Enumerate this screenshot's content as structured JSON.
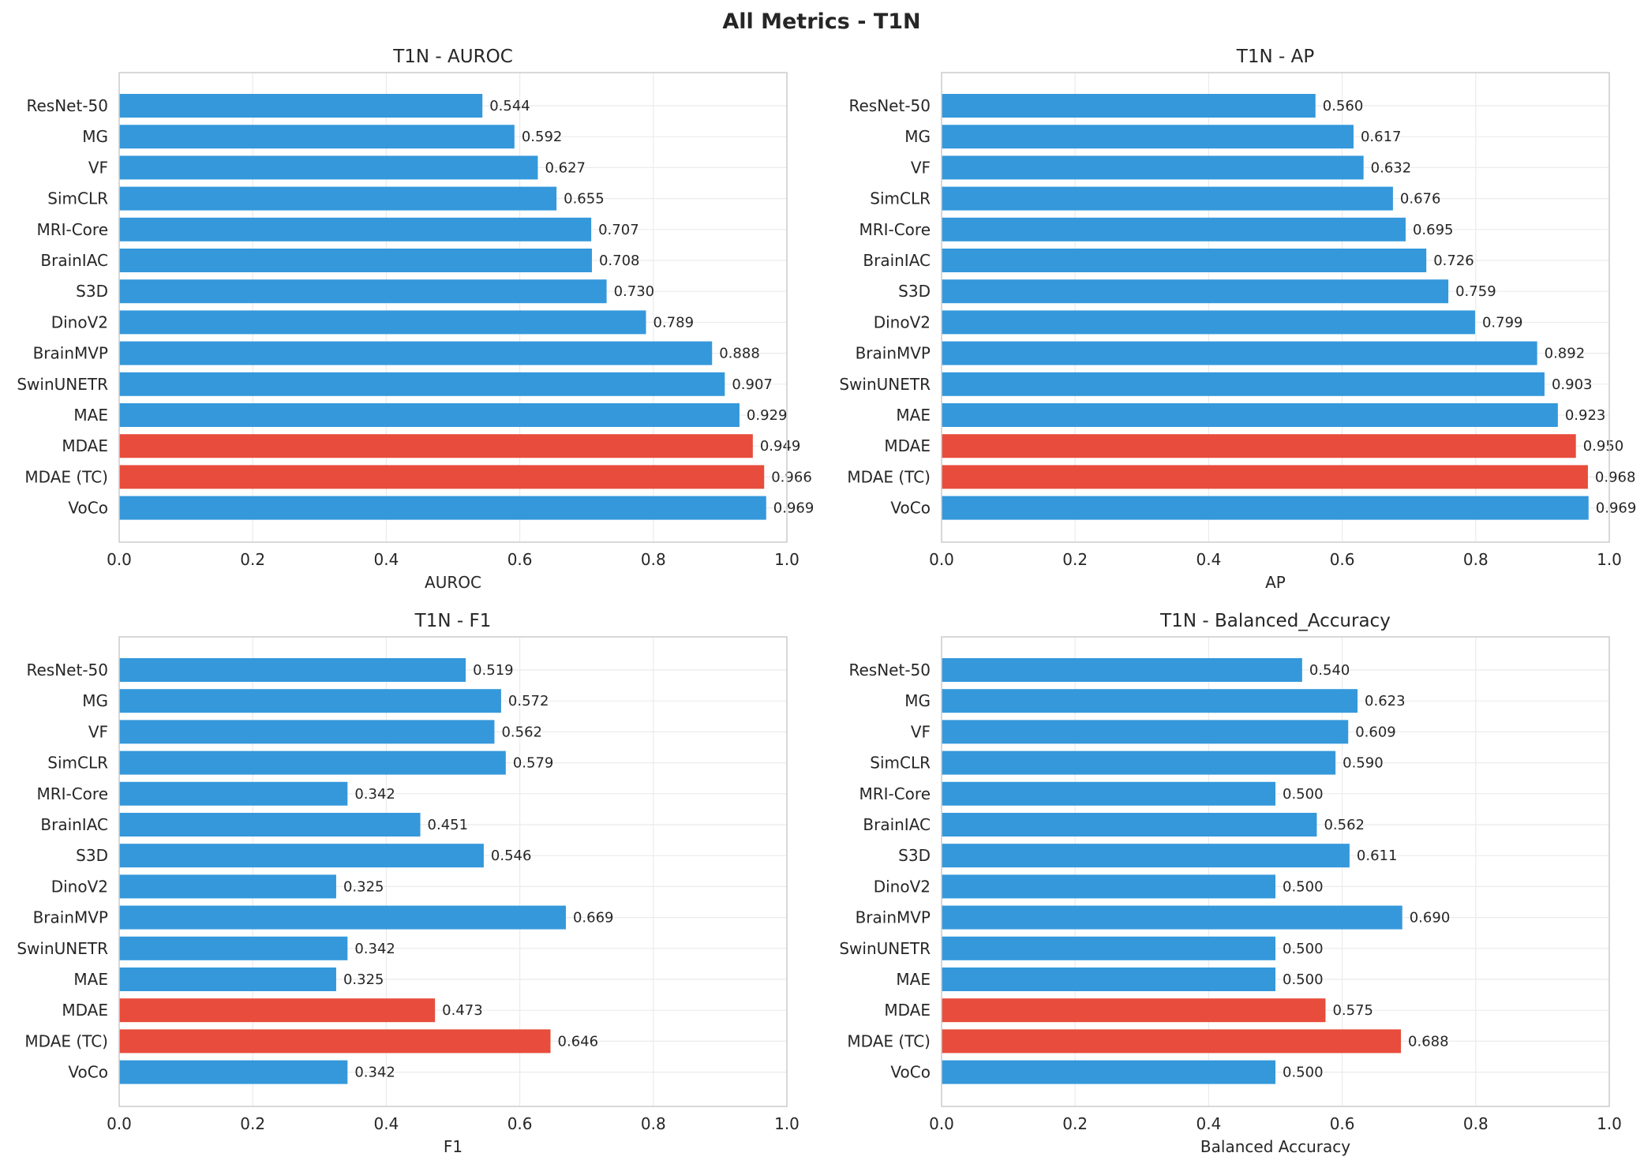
{
  "figure_title": "All Metrics - T1N",
  "colors": {
    "default": "#3498db",
    "highlight": "#e74c3c",
    "grid": "#ebebeb",
    "spine": "#cccccc"
  },
  "chart_data": [
    {
      "type": "bar",
      "orientation": "horizontal",
      "title": "T1N - AUROC",
      "xlabel": "AUROC",
      "xlim": [
        0,
        1
      ],
      "xticks": [
        "0.0",
        "0.2",
        "0.4",
        "0.6",
        "0.8",
        "1.0"
      ],
      "grid": true,
      "categories": [
        "ResNet-50",
        "MG",
        "VF",
        "SimCLR",
        "MRI-Core",
        "BrainIAC",
        "S3D",
        "DinoV2",
        "BrainMVP",
        "SwinUNETR",
        "MAE",
        "MDAE",
        "MDAE (TC)",
        "VoCo"
      ],
      "values": [
        0.544,
        0.592,
        0.627,
        0.655,
        0.707,
        0.708,
        0.73,
        0.789,
        0.888,
        0.907,
        0.929,
        0.949,
        0.966,
        0.969
      ],
      "value_labels": [
        "0.544",
        "0.592",
        "0.627",
        "0.655",
        "0.707",
        "0.708",
        "0.730",
        "0.789",
        "0.888",
        "0.907",
        "0.929",
        "0.949",
        "0.966",
        "0.969"
      ],
      "highlighted": [
        "MDAE",
        "MDAE (TC)"
      ]
    },
    {
      "type": "bar",
      "orientation": "horizontal",
      "title": "T1N - AP",
      "xlabel": "AP",
      "xlim": [
        0,
        1
      ],
      "xticks": [
        "0.0",
        "0.2",
        "0.4",
        "0.6",
        "0.8",
        "1.0"
      ],
      "grid": true,
      "categories": [
        "ResNet-50",
        "MG",
        "VF",
        "SimCLR",
        "MRI-Core",
        "BrainIAC",
        "S3D",
        "DinoV2",
        "BrainMVP",
        "SwinUNETR",
        "MAE",
        "MDAE",
        "MDAE (TC)",
        "VoCo"
      ],
      "values": [
        0.56,
        0.617,
        0.632,
        0.676,
        0.695,
        0.726,
        0.759,
        0.799,
        0.892,
        0.903,
        0.923,
        0.95,
        0.968,
        0.969
      ],
      "value_labels": [
        "0.560",
        "0.617",
        "0.632",
        "0.676",
        "0.695",
        "0.726",
        "0.759",
        "0.799",
        "0.892",
        "0.903",
        "0.923",
        "0.950",
        "0.968",
        "0.969"
      ],
      "highlighted": [
        "MDAE",
        "MDAE (TC)"
      ]
    },
    {
      "type": "bar",
      "orientation": "horizontal",
      "title": "T1N - F1",
      "xlabel": "F1",
      "xlim": [
        0,
        1
      ],
      "xticks": [
        "0.0",
        "0.2",
        "0.4",
        "0.6",
        "0.8",
        "1.0"
      ],
      "grid": true,
      "categories": [
        "ResNet-50",
        "MG",
        "VF",
        "SimCLR",
        "MRI-Core",
        "BrainIAC",
        "S3D",
        "DinoV2",
        "BrainMVP",
        "SwinUNETR",
        "MAE",
        "MDAE",
        "MDAE (TC)",
        "VoCo"
      ],
      "values": [
        0.519,
        0.572,
        0.562,
        0.579,
        0.342,
        0.451,
        0.546,
        0.325,
        0.669,
        0.342,
        0.325,
        0.473,
        0.646,
        0.342
      ],
      "value_labels": [
        "0.519",
        "0.572",
        "0.562",
        "0.579",
        "0.342",
        "0.451",
        "0.546",
        "0.325",
        "0.669",
        "0.342",
        "0.325",
        "0.473",
        "0.646",
        "0.342"
      ],
      "highlighted": [
        "MDAE",
        "MDAE (TC)"
      ]
    },
    {
      "type": "bar",
      "orientation": "horizontal",
      "title": "T1N - Balanced_Accuracy",
      "xlabel": "Balanced Accuracy",
      "xlim": [
        0,
        1
      ],
      "xticks": [
        "0.0",
        "0.2",
        "0.4",
        "0.6",
        "0.8",
        "1.0"
      ],
      "grid": true,
      "categories": [
        "ResNet-50",
        "MG",
        "VF",
        "SimCLR",
        "MRI-Core",
        "BrainIAC",
        "S3D",
        "DinoV2",
        "BrainMVP",
        "SwinUNETR",
        "MAE",
        "MDAE",
        "MDAE (TC)",
        "VoCo"
      ],
      "values": [
        0.54,
        0.623,
        0.609,
        0.59,
        0.5,
        0.562,
        0.611,
        0.5,
        0.69,
        0.5,
        0.5,
        0.575,
        0.688,
        0.5
      ],
      "value_labels": [
        "0.540",
        "0.623",
        "0.609",
        "0.590",
        "0.500",
        "0.562",
        "0.611",
        "0.500",
        "0.690",
        "0.500",
        "0.500",
        "0.575",
        "0.688",
        "0.500"
      ],
      "highlighted": [
        "MDAE",
        "MDAE (TC)"
      ]
    }
  ]
}
